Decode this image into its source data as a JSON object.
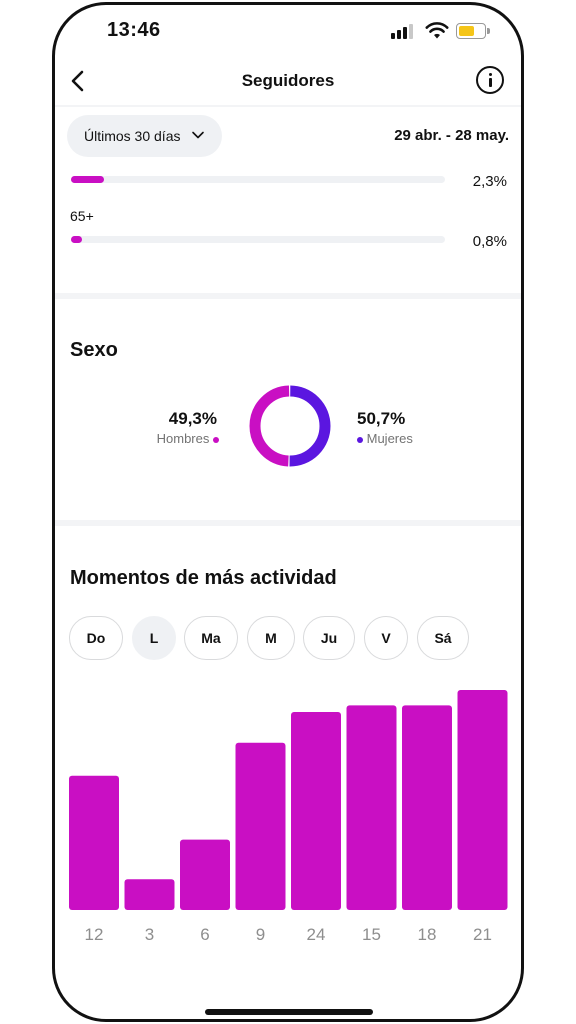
{
  "status_bar": {
    "time": "13:46"
  },
  "header": {
    "title": "Seguidores"
  },
  "filter": {
    "range_label": "Últimos 30 días",
    "date_range": "29 abr. - 28 may."
  },
  "age": {
    "rows": [
      {
        "label": "",
        "percent_text": "2,3%",
        "fraction": 0.023
      },
      {
        "label": "65+",
        "percent_text": "0,8%",
        "fraction": 0.008
      }
    ]
  },
  "gender": {
    "title": "Sexo",
    "men": {
      "percent": "49,3%",
      "label": "Hombres",
      "color": "#c90fc3",
      "fraction": 0.493
    },
    "women": {
      "percent": "50,7%",
      "label": "Mujeres",
      "color": "#5b16e0",
      "fraction": 0.507
    }
  },
  "activity": {
    "title": "Momentos de más actividad",
    "days": [
      {
        "label": "Do",
        "selected": false
      },
      {
        "label": "L",
        "selected": true
      },
      {
        "label": "Ma",
        "selected": false
      },
      {
        "label": "M",
        "selected": false
      },
      {
        "label": "Ju",
        "selected": false
      },
      {
        "label": "V",
        "selected": false
      },
      {
        "label": "Sá",
        "selected": false
      }
    ]
  },
  "chart_data": {
    "type": "bar",
    "categories": [
      "12",
      "3",
      "6",
      "9",
      "24",
      "15",
      "18",
      "21"
    ],
    "values": [
      61,
      14,
      32,
      76,
      90,
      93,
      93,
      100
    ],
    "ylim": [
      0,
      100
    ],
    "grid": false,
    "bar_color": "#c90fc3"
  }
}
